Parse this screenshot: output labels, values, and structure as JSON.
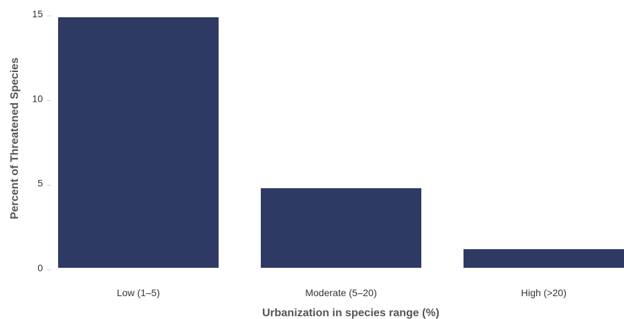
{
  "chart_data": {
    "type": "bar",
    "categories": [
      "Low (1–5)",
      "Moderate (5–20)",
      "High (>20)"
    ],
    "values": [
      14.8,
      4.7,
      1.1
    ],
    "xlabel": "Urbanization in species range (%)",
    "ylabel": "Percent of Threatened Species",
    "ylim": [
      0,
      15
    ],
    "yticks": [
      0,
      5,
      10,
      15
    ],
    "grid": false,
    "legend": "none",
    "bar_color": "#2e3a63"
  }
}
